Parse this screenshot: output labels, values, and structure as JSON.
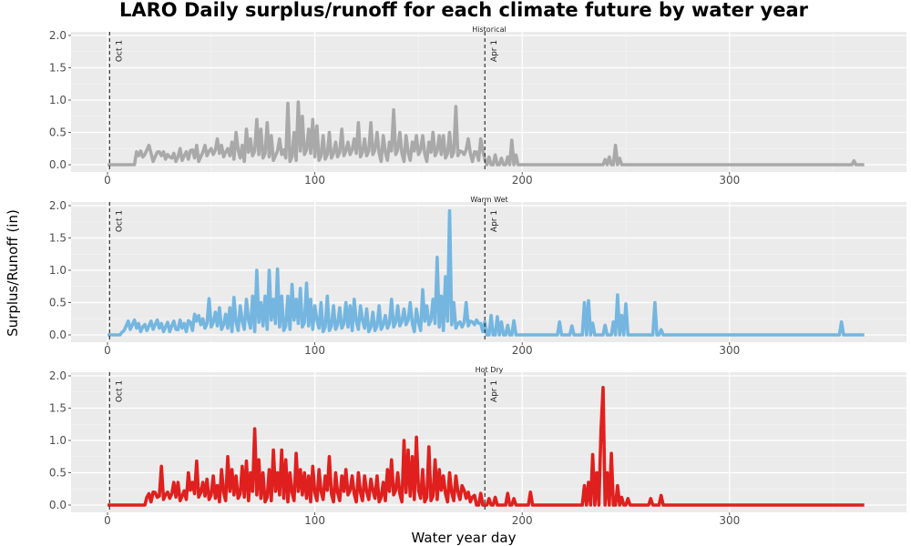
{
  "chart_data": {
    "type": "line",
    "title": "LARO Daily surplus/runoff for each climate future by water year",
    "xlabel": "Water year day",
    "ylabel": "Surplus/Runoff (in)",
    "xlim": [
      0,
      365
    ],
    "ylim": [
      0,
      2.0
    ],
    "x_ticks": [
      0,
      100,
      200,
      300
    ],
    "y_ticks": [
      0.0,
      0.5,
      1.0,
      1.5,
      2.0
    ],
    "y_tick_labels": [
      "0.0",
      "0.5",
      "1.0",
      "1.5",
      "2.0"
    ],
    "grid": true,
    "reference_lines": [
      {
        "x": 1,
        "label": "Oct 1",
        "style": "dashed"
      },
      {
        "x": 182,
        "label": "Apr 1",
        "style": "dashed"
      }
    ],
    "panels": [
      {
        "name": "Historical",
        "color": "#a9a9a9",
        "peaks": [
          [
            14,
            0.2
          ],
          [
            17,
            0.12
          ],
          [
            20,
            0.3
          ],
          [
            25,
            0.2
          ],
          [
            27,
            0.2
          ],
          [
            30,
            0.12
          ],
          [
            35,
            0.25
          ],
          [
            38,
            0.2
          ],
          [
            40,
            0.22
          ],
          [
            43,
            0.3
          ],
          [
            47,
            0.3
          ],
          [
            50,
            0.25
          ],
          [
            53,
            0.4
          ],
          [
            55,
            0.3
          ],
          [
            58,
            0.25
          ],
          [
            60,
            0.35
          ],
          [
            62,
            0.5
          ],
          [
            65,
            0.3
          ],
          [
            67,
            0.55
          ],
          [
            69,
            0.4
          ],
          [
            72,
            0.7
          ],
          [
            74,
            0.55
          ],
          [
            77,
            0.65
          ],
          [
            79,
            0.45
          ],
          [
            83,
            0.4
          ],
          [
            87,
            0.95
          ],
          [
            90,
            0.5
          ],
          [
            92,
            0.97
          ],
          [
            94,
            0.75
          ],
          [
            97,
            0.55
          ],
          [
            99,
            0.7
          ],
          [
            101,
            0.6
          ],
          [
            104,
            0.45
          ],
          [
            107,
            0.5
          ],
          [
            110,
            0.35
          ],
          [
            113,
            0.55
          ],
          [
            116,
            0.35
          ],
          [
            119,
            0.4
          ],
          [
            121,
            0.65
          ],
          [
            124,
            0.4
          ],
          [
            127,
            0.65
          ],
          [
            130,
            0.5
          ],
          [
            133,
            0.45
          ],
          [
            136,
            0.35
          ],
          [
            138,
            0.85
          ],
          [
            141,
            0.5
          ],
          [
            144,
            0.45
          ],
          [
            147,
            0.35
          ],
          [
            149,
            0.45
          ],
          [
            152,
            0.45
          ],
          [
            155,
            0.35
          ],
          [
            157,
            0.5
          ],
          [
            160,
            0.45
          ],
          [
            162,
            0.45
          ],
          [
            165,
            0.5
          ],
          [
            168,
            0.9
          ],
          [
            171,
            0.2
          ],
          [
            174,
            0.4
          ],
          [
            177,
            0.2
          ],
          [
            180,
            0.4
          ],
          [
            184,
            0.12
          ],
          [
            187,
            0.15
          ],
          [
            190,
            0.1
          ],
          [
            193,
            0.12
          ],
          [
            195,
            0.38
          ],
          [
            197,
            0.15
          ],
          [
            240,
            0.08
          ],
          [
            242,
            0.12
          ],
          [
            245,
            0.3
          ],
          [
            247,
            0.1
          ],
          [
            360,
            0.06
          ]
        ]
      },
      {
        "name": "Warm Wet",
        "color": "#74b6e0",
        "peaks": [
          [
            7,
            0.04
          ],
          [
            18,
            0.16
          ],
          [
            20,
            0.14
          ],
          [
            30,
            0.05
          ],
          [
            34,
            0.08
          ],
          [
            39,
            0.22
          ],
          [
            42,
            0.32
          ],
          [
            44,
            0.3
          ],
          [
            46,
            0.25
          ],
          [
            49,
            0.56
          ],
          [
            52,
            0.35
          ],
          [
            54,
            0.42
          ],
          [
            57,
            0.32
          ],
          [
            59,
            0.42
          ],
          [
            61,
            0.58
          ],
          [
            64,
            0.45
          ],
          [
            67,
            0.55
          ],
          [
            70,
            0.6
          ],
          [
            72,
            1.0
          ],
          [
            74,
            0.5
          ],
          [
            76,
            0.6
          ],
          [
            78,
            1.0
          ],
          [
            80,
            0.55
          ],
          [
            82,
            1.02
          ],
          [
            84,
            0.6
          ],
          [
            87,
            0.6
          ],
          [
            89,
            0.78
          ],
          [
            91,
            0.55
          ],
          [
            93,
            0.72
          ],
          [
            96,
            0.8
          ],
          [
            98,
            0.55
          ],
          [
            100,
            0.45
          ],
          [
            103,
            0.5
          ],
          [
            106,
            0.6
          ],
          [
            109,
            0.45
          ],
          [
            112,
            0.42
          ],
          [
            115,
            0.5
          ],
          [
            117,
            0.45
          ],
          [
            119,
            0.55
          ],
          [
            122,
            0.45
          ],
          [
            125,
            0.4
          ],
          [
            128,
            0.35
          ],
          [
            131,
            0.45
          ],
          [
            134,
            0.3
          ],
          [
            137,
            0.55
          ],
          [
            140,
            0.45
          ],
          [
            143,
            0.4
          ],
          [
            146,
            0.5
          ],
          [
            149,
            0.4
          ],
          [
            152,
            0.7
          ],
          [
            154,
            0.45
          ],
          [
            157,
            0.55
          ],
          [
            159,
            1.2
          ],
          [
            161,
            0.6
          ],
          [
            163,
            0.9
          ],
          [
            165,
            1.92
          ],
          [
            167,
            0.5
          ],
          [
            170,
            0.2
          ],
          [
            173,
            0.5
          ],
          [
            176,
            0.2
          ],
          [
            179,
            0.18
          ],
          [
            182,
            0.2
          ],
          [
            185,
            0.3
          ],
          [
            188,
            0.28
          ],
          [
            190,
            0.2
          ],
          [
            193,
            0.15
          ],
          [
            196,
            0.22
          ],
          [
            218,
            0.2
          ],
          [
            224,
            0.14
          ],
          [
            230,
            0.5
          ],
          [
            232,
            0.53
          ],
          [
            234,
            0.18
          ],
          [
            240,
            0.15
          ],
          [
            244,
            0.2
          ],
          [
            246,
            0.62
          ],
          [
            248,
            0.3
          ],
          [
            250,
            0.48
          ],
          [
            264,
            0.5
          ],
          [
            267,
            0.08
          ],
          [
            354,
            0.2
          ]
        ]
      },
      {
        "name": "Hot Dry",
        "color": "#e0201e",
        "peaks": [
          [
            19,
            0.12
          ],
          [
            22,
            0.2
          ],
          [
            24,
            0.12
          ],
          [
            26,
            0.6
          ],
          [
            29,
            0.2
          ],
          [
            32,
            0.35
          ],
          [
            34,
            0.35
          ],
          [
            37,
            0.22
          ],
          [
            39,
            0.5
          ],
          [
            41,
            0.35
          ],
          [
            43,
            0.68
          ],
          [
            46,
            0.35
          ],
          [
            48,
            0.4
          ],
          [
            51,
            0.45
          ],
          [
            53,
            0.3
          ],
          [
            55,
            0.55
          ],
          [
            58,
            0.75
          ],
          [
            60,
            0.55
          ],
          [
            62,
            0.45
          ],
          [
            65,
            0.6
          ],
          [
            67,
            0.68
          ],
          [
            69,
            0.5
          ],
          [
            71,
            1.18
          ],
          [
            73,
            0.7
          ],
          [
            75,
            0.5
          ],
          [
            78,
            0.55
          ],
          [
            80,
            0.85
          ],
          [
            82,
            0.5
          ],
          [
            84,
            0.85
          ],
          [
            86,
            0.7
          ],
          [
            88,
            0.5
          ],
          [
            91,
            0.8
          ],
          [
            93,
            0.55
          ],
          [
            95,
            0.5
          ],
          [
            97,
            0.45
          ],
          [
            99,
            0.6
          ],
          [
            102,
            0.55
          ],
          [
            105,
            0.45
          ],
          [
            107,
            0.75
          ],
          [
            110,
            0.5
          ],
          [
            113,
            0.45
          ],
          [
            115,
            0.55
          ],
          [
            118,
            0.45
          ],
          [
            121,
            0.5
          ],
          [
            124,
            0.45
          ],
          [
            127,
            0.4
          ],
          [
            130,
            0.45
          ],
          [
            133,
            0.35
          ],
          [
            135,
            0.55
          ],
          [
            137,
            0.7
          ],
          [
            140,
            0.5
          ],
          [
            143,
            1.0
          ],
          [
            145,
            0.85
          ],
          [
            147,
            0.75
          ],
          [
            149,
            1.05
          ],
          [
            152,
            0.55
          ],
          [
            155,
            0.9
          ],
          [
            158,
            0.7
          ],
          [
            160,
            0.55
          ],
          [
            162,
            0.45
          ],
          [
            165,
            0.5
          ],
          [
            168,
            0.45
          ],
          [
            171,
            0.3
          ],
          [
            174,
            0.2
          ],
          [
            177,
            0.15
          ],
          [
            180,
            0.18
          ],
          [
            184,
            0.1
          ],
          [
            187,
            0.12
          ],
          [
            193,
            0.18
          ],
          [
            196,
            0.1
          ],
          [
            204,
            0.2
          ],
          [
            230,
            0.3
          ],
          [
            232,
            0.35
          ],
          [
            234,
            0.78
          ],
          [
            236,
            0.5
          ],
          [
            238,
            1.15
          ],
          [
            239,
            1.82
          ],
          [
            241,
            0.5
          ],
          [
            243,
            0.8
          ],
          [
            246,
            0.3
          ],
          [
            248,
            0.12
          ],
          [
            251,
            0.1
          ],
          [
            262,
            0.1
          ],
          [
            267,
            0.15
          ]
        ]
      }
    ]
  }
}
